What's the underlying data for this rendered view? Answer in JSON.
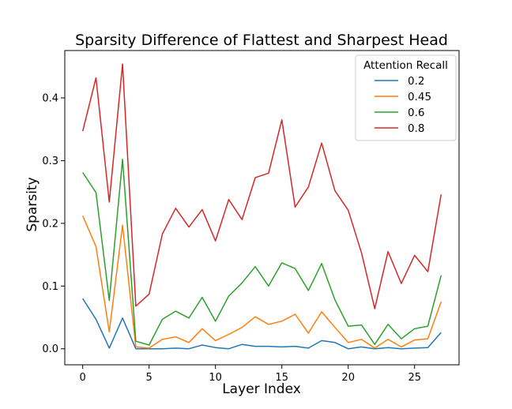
{
  "chart_data": {
    "type": "line",
    "title": "Sparsity Difference of Flattest and Sharpest Head",
    "xlabel": "Layer Index",
    "ylabel": "Sparsity",
    "xlim": [
      -1.35,
      28.35
    ],
    "ylim": [
      -0.0255,
      0.4755
    ],
    "xticks": [
      0,
      5,
      10,
      15,
      20,
      25
    ],
    "xtick_labels": [
      "0",
      "5",
      "10",
      "15",
      "20",
      "25"
    ],
    "yticks": [
      0.0,
      0.1,
      0.2,
      0.3,
      0.4
    ],
    "ytick_labels": [
      "0.0",
      "0.1",
      "0.2",
      "0.3",
      "0.4"
    ],
    "grid": false,
    "legend": {
      "title": "Attention Recall",
      "position": "upper right"
    },
    "x": [
      0,
      1,
      2,
      3,
      4,
      5,
      6,
      7,
      8,
      9,
      10,
      11,
      12,
      13,
      14,
      15,
      16,
      17,
      18,
      19,
      20,
      21,
      22,
      23,
      24,
      25,
      26,
      27
    ],
    "series": [
      {
        "name": "0.2",
        "color": "#1f77b4",
        "values": [
          0.08,
          0.047,
          0.001,
          0.049,
          0.0,
          0.0,
          0.0,
          0.001,
          0.0,
          0.006,
          0.002,
          0.0,
          0.007,
          0.004,
          0.004,
          0.003,
          0.004,
          0.001,
          0.013,
          0.01,
          0.0,
          0.003,
          0.0,
          0.002,
          0.0,
          0.001,
          0.002,
          0.026
        ]
      },
      {
        "name": "0.45",
        "color": "#ff7f0e",
        "values": [
          0.212,
          0.163,
          0.027,
          0.197,
          0.003,
          0.001,
          0.015,
          0.019,
          0.01,
          0.032,
          0.013,
          0.023,
          0.034,
          0.051,
          0.039,
          0.044,
          0.055,
          0.025,
          0.059,
          0.034,
          0.01,
          0.015,
          0.001,
          0.015,
          0.003,
          0.014,
          0.016,
          0.075
        ]
      },
      {
        "name": "0.6",
        "color": "#2ca02c",
        "values": [
          0.281,
          0.249,
          0.077,
          0.302,
          0.012,
          0.006,
          0.047,
          0.06,
          0.049,
          0.082,
          0.044,
          0.084,
          0.105,
          0.131,
          0.1,
          0.137,
          0.128,
          0.093,
          0.136,
          0.078,
          0.036,
          0.038,
          0.007,
          0.039,
          0.016,
          0.032,
          0.036,
          0.117
        ]
      },
      {
        "name": "0.8",
        "color": "#d62728",
        "values": [
          0.347,
          0.432,
          0.234,
          0.454,
          0.068,
          0.087,
          0.183,
          0.224,
          0.194,
          0.222,
          0.172,
          0.238,
          0.206,
          0.273,
          0.28,
          0.365,
          0.226,
          0.258,
          0.328,
          0.252,
          0.221,
          0.153,
          0.064,
          0.155,
          0.104,
          0.149,
          0.123,
          0.246
        ]
      }
    ]
  }
}
